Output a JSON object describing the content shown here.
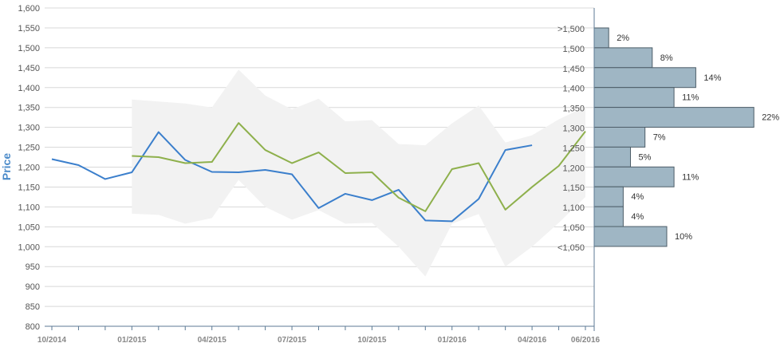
{
  "chart_data": {
    "type": "line",
    "ylabel": "Price",
    "ylim": [
      800,
      1600
    ],
    "yticks": [
      "800",
      "850",
      "900",
      "950",
      "1,000",
      "1,050",
      "1,100",
      "1,150",
      "1,200",
      "1,250",
      "1,300",
      "1,350",
      "1,400",
      "1,450",
      "1,500",
      "1,550",
      "1,600"
    ],
    "xticks": [
      "10/2014",
      "01/2015",
      "04/2015",
      "07/2015",
      "10/2015",
      "01/2016",
      "04/2016",
      "06/2016"
    ],
    "months": [
      "10/2014",
      "11/2014",
      "12/2014",
      "01/2015",
      "02/2015",
      "03/2015",
      "04/2015",
      "05/2015",
      "06/2015",
      "07/2015",
      "08/2015",
      "09/2015",
      "10/2015",
      "11/2015",
      "12/2015",
      "01/2016",
      "02/2016",
      "03/2016",
      "04/2016",
      "05/2016",
      "06/2016"
    ],
    "band": {
      "upper": [
        null,
        null,
        null,
        1370,
        1365,
        1360,
        1350,
        1445,
        1380,
        1345,
        1372,
        1315,
        1318,
        1258,
        1255,
        1310,
        1355,
        1262,
        1280,
        1320,
        1352
      ],
      "lower": [
        null,
        null,
        null,
        1083,
        1080,
        1058,
        1072,
        1168,
        1100,
        1068,
        1092,
        1058,
        1060,
        1000,
        925,
        1058,
        1082,
        950,
        1000,
        1060,
        1125
      ]
    },
    "series": [
      {
        "name": "",
        "color": "#3b7fcc",
        "values": [
          1220,
          1205,
          1170,
          1187,
          1288,
          1218,
          1188,
          1187,
          1193,
          1182,
          1097,
          1133,
          1117,
          1143,
          1066,
          1064,
          1120,
          1243,
          1255,
          null,
          null
        ]
      },
      {
        "name": "",
        "color": "#8eb04c",
        "values": [
          null,
          null,
          null,
          1228,
          1225,
          1210,
          1213,
          1311,
          1243,
          1210,
          1237,
          1185,
          1187,
          1123,
          1089,
          1195,
          1210,
          1093,
          1150,
          1203,
          1290
        ]
      }
    ],
    "histogram": {
      "bins": [
        {
          "label": ">1,500",
          "value": 2
        },
        {
          "label": "1,500",
          "value": 8
        },
        {
          "label": "1,450",
          "value": 14
        },
        {
          "label": "1,400",
          "value": 11
        },
        {
          "label": "1,350",
          "value": 22
        },
        {
          "label": "1,300",
          "value": 7
        },
        {
          "label": "1,250",
          "value": 5
        },
        {
          "label": "1,200",
          "value": 11
        },
        {
          "label": "1,150",
          "value": 4
        },
        {
          "label": "1,100",
          "value": 4
        },
        {
          "label": "1,050",
          "value": 10
        },
        {
          "label": "<1,050",
          "value": null
        }
      ],
      "value_suffix": "%"
    },
    "grid": true
  },
  "colors": {
    "grid": "#d8d8d8",
    "band": "#f2f2f2",
    "bar_fill": "#9fb6c4",
    "bar_stroke": "#4d5d68",
    "axis": "#5c7a94"
  }
}
